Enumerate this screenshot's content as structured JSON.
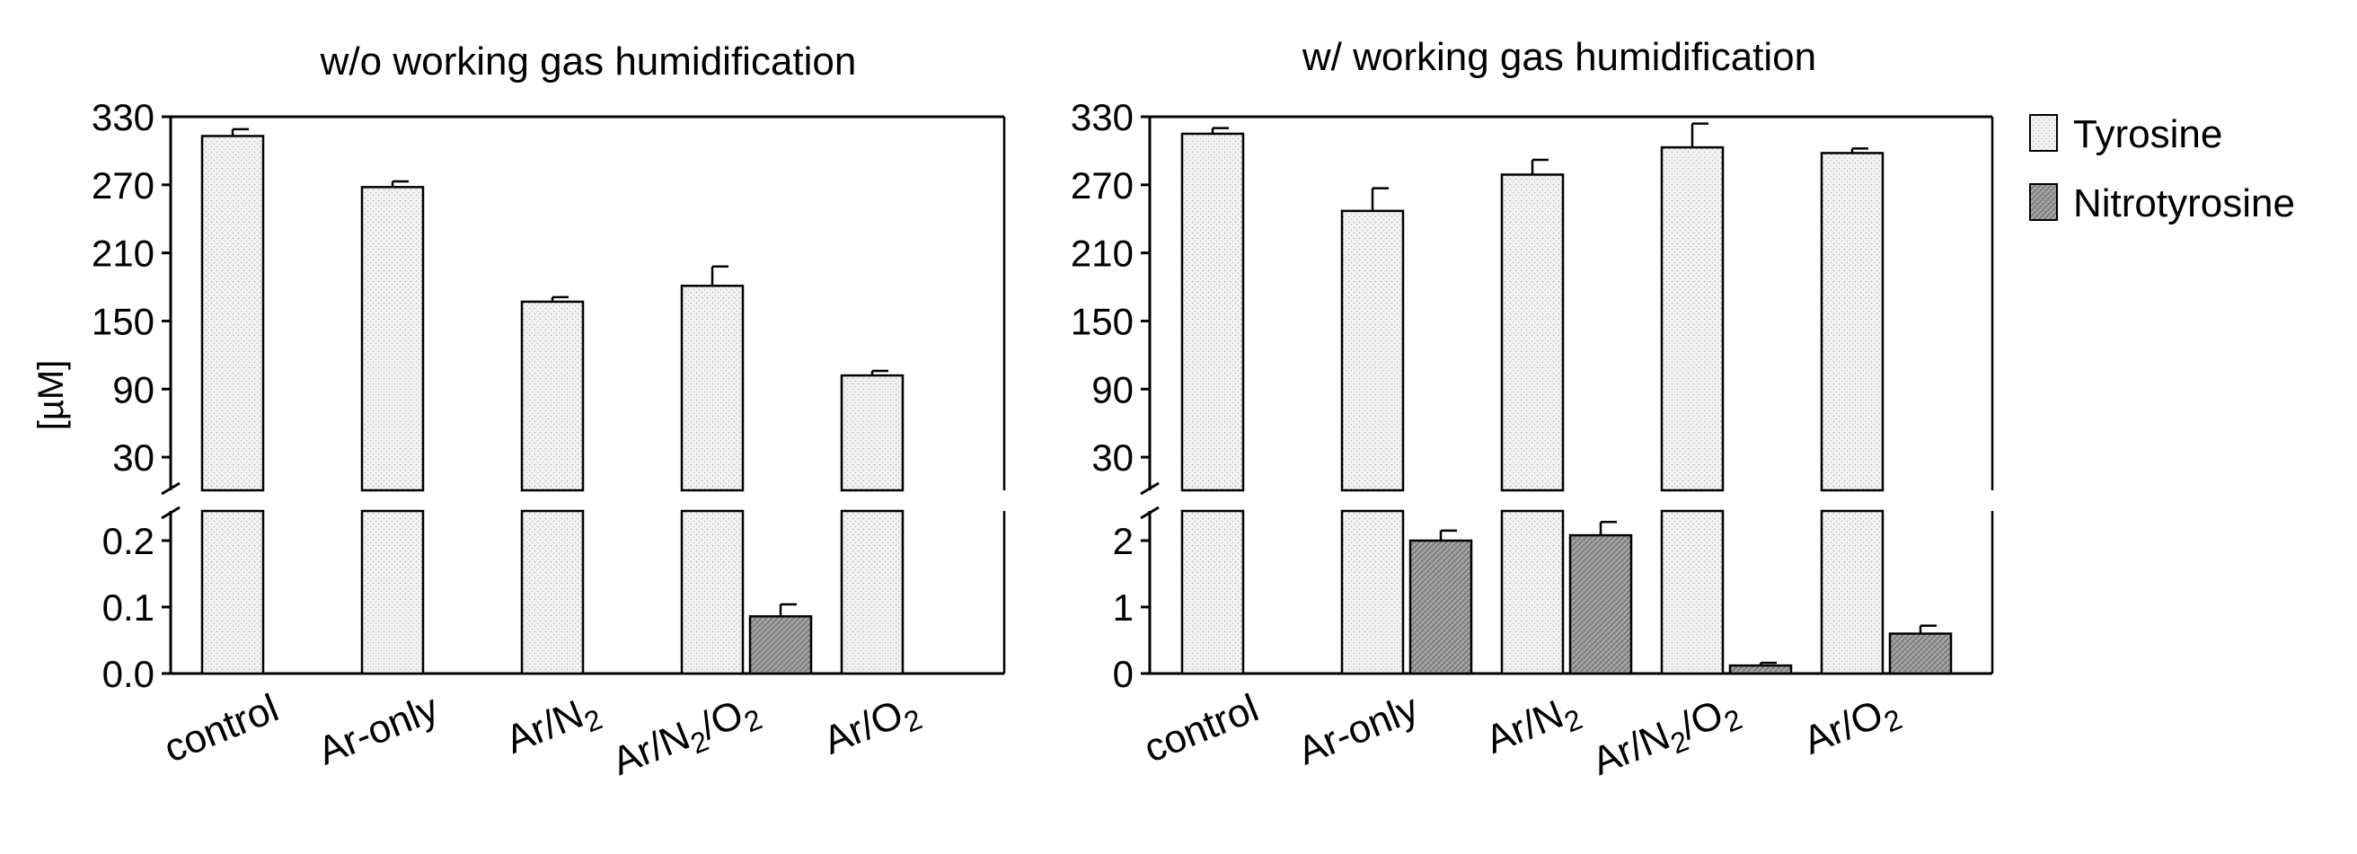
{
  "chart_data": [
    {
      "type": "bar",
      "title": "w/o working gas humidification",
      "ylabel": "[µM]",
      "categories": [
        "control",
        "Ar-only",
        "Ar/N2",
        "Ar/N2/O2",
        "Ar/O2"
      ],
      "category_labels": [
        {
          "base": "control",
          "sub": ""
        },
        {
          "base": "Ar-only",
          "sub": ""
        },
        {
          "base": "Ar/N",
          "sub": "2"
        },
        {
          "base": "Ar/N",
          "sub": "2",
          "base2": "/O",
          "sub2": "2"
        },
        {
          "base": "Ar/O",
          "sub": "2"
        }
      ],
      "upper_axis": {
        "range": [
          0,
          330
        ],
        "ticks": [
          30,
          90,
          150,
          210,
          270,
          330
        ]
      },
      "lower_axis": {
        "range": [
          0,
          0.25
        ],
        "ticks": [
          "0.0",
          "0.1",
          "0.2"
        ]
      },
      "series": [
        {
          "name": "Tyrosine",
          "axis": "upper",
          "values": [
            313,
            268,
            167,
            181,
            102
          ],
          "errors": [
            6,
            5,
            4,
            17,
            4
          ]
        },
        {
          "name": "Nitrotyrosine",
          "axis": "lower",
          "values": [
            0,
            0,
            0,
            0.086,
            0
          ],
          "errors": [
            0,
            0,
            0,
            0.018,
            0
          ]
        }
      ]
    },
    {
      "type": "bar",
      "title": "w/ working gas humidification",
      "ylabel": "",
      "categories": [
        "control",
        "Ar-only",
        "Ar/N2",
        "Ar/N2/O2",
        "Ar/O2"
      ],
      "category_labels": [
        {
          "base": "control",
          "sub": ""
        },
        {
          "base": "Ar-only",
          "sub": ""
        },
        {
          "base": "Ar/N",
          "sub": "2"
        },
        {
          "base": "Ar/N",
          "sub": "2",
          "base2": "/O",
          "sub2": "2"
        },
        {
          "base": "Ar/O",
          "sub": "2"
        }
      ],
      "upper_axis": {
        "range": [
          0,
          330
        ],
        "ticks": [
          30,
          90,
          150,
          210,
          270,
          330
        ]
      },
      "lower_axis": {
        "range": [
          0,
          2.5
        ],
        "ticks": [
          "0",
          "1",
          "2"
        ]
      },
      "series": [
        {
          "name": "Tyrosine",
          "axis": "upper",
          "values": [
            315,
            247,
            279,
            303,
            298
          ],
          "errors": [
            5,
            20,
            13,
            21,
            4
          ]
        },
        {
          "name": "Nitrotyrosine",
          "axis": "lower",
          "values": [
            0,
            2.0,
            2.08,
            0.12,
            0.6
          ],
          "errors": [
            0,
            0.15,
            0.2,
            0.04,
            0.12
          ]
        }
      ]
    }
  ],
  "legend": [
    {
      "name": "Tyrosine",
      "pattern": "light-dots"
    },
    {
      "name": "Nitrotyrosine",
      "pattern": "dark-hatch"
    }
  ],
  "colors": {
    "tyrosine_fill": "#f2f2f2",
    "nitrotyrosine_fill": "#9a9a9a",
    "axis": "#000000"
  }
}
